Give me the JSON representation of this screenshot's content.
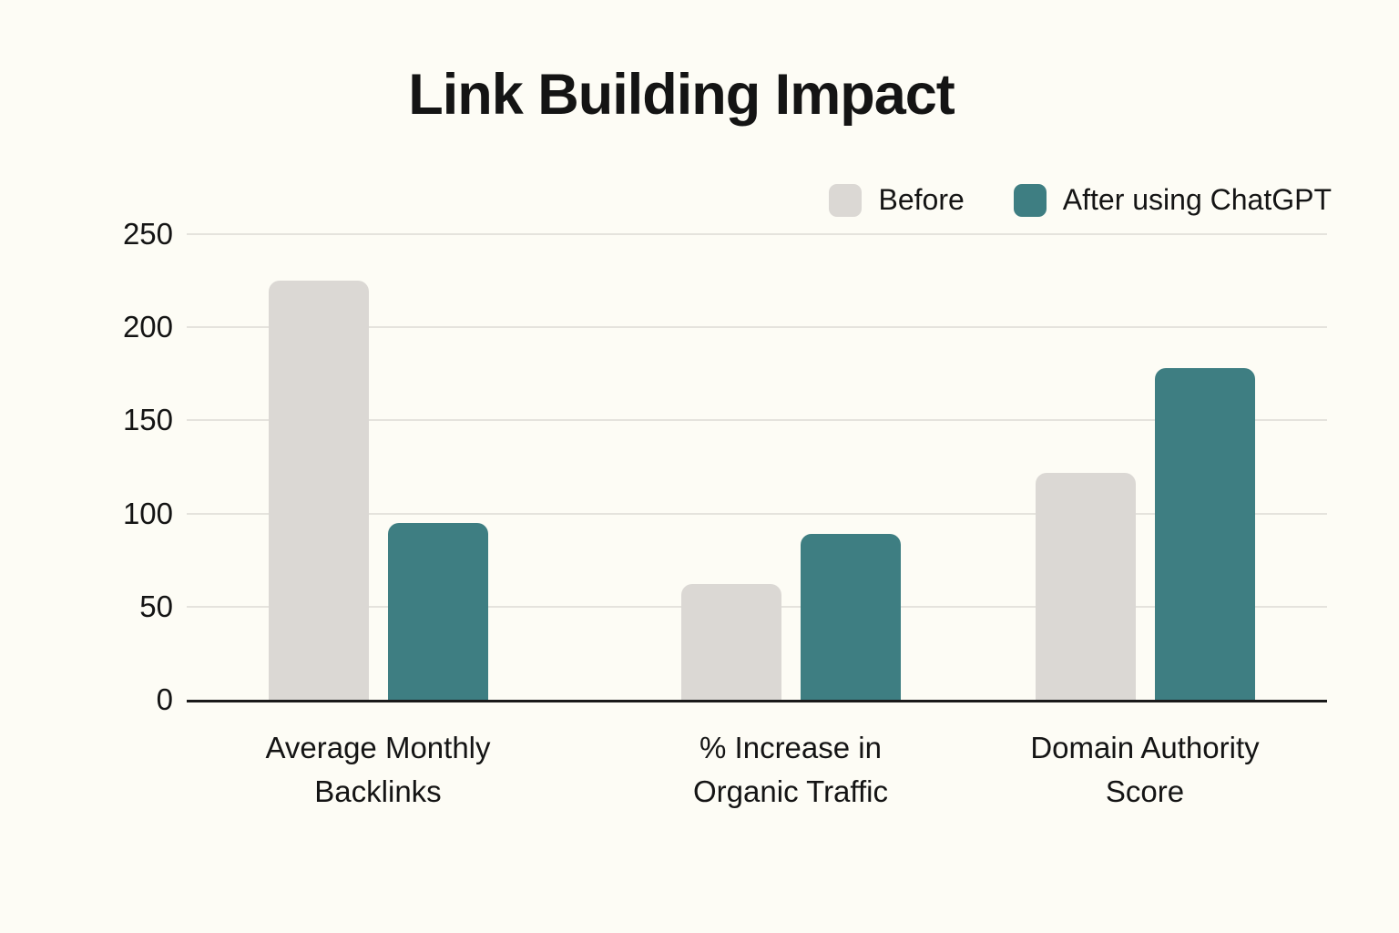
{
  "chart_data": {
    "type": "bar",
    "title": "Link Building Impact",
    "categories": [
      "Average Monthly Backlinks",
      "% Increase in Organic Traffic",
      "Domain Authority Score"
    ],
    "series": [
      {
        "name": "Before",
        "color": "#DBD8D4",
        "values": [
          225,
          62,
          122
        ]
      },
      {
        "name": "After using ChatGPT",
        "color": "#3E7E82",
        "values": [
          95,
          89,
          178
        ]
      }
    ],
    "xlabel": "",
    "ylabel": "",
    "ylim": [
      0,
      250
    ],
    "yticks": [
      0,
      50,
      100,
      150,
      200,
      250
    ],
    "grid": true,
    "legend_position": "top-right",
    "colors": {
      "background": "#FDFCF5",
      "text": "#141414",
      "gridline": "#E5E3DD",
      "axis": "#1A1A1A"
    }
  }
}
